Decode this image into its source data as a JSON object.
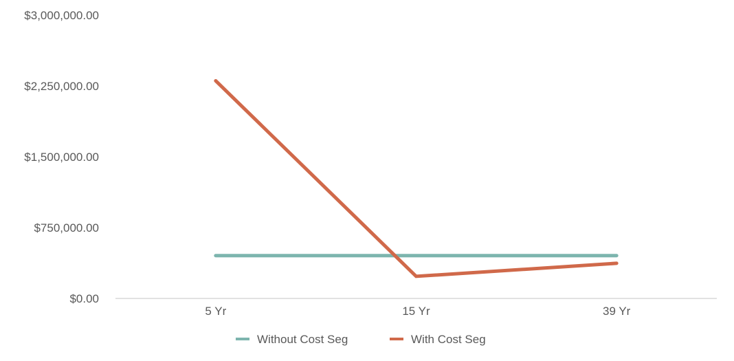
{
  "chart_data": {
    "type": "line",
    "categories": [
      "5 Yr",
      "15 Yr",
      "39 Yr"
    ],
    "series": [
      {
        "name": "Without Cost Seg",
        "color": "#7db5ae",
        "values": [
          453000,
          453000,
          453000
        ]
      },
      {
        "name": "With Cost Seg",
        "color": "#d0694a",
        "values": [
          2305000,
          234000,
          372000
        ]
      }
    ],
    "ylim": [
      0,
      3000000
    ],
    "yticks": [
      0,
      750000,
      1500000,
      2250000,
      3000000
    ],
    "ytick_labels": [
      "$0.00",
      "$750,000.00",
      "$1,500,000.00",
      "$2,250,000.00",
      "$3,000,000.00"
    ],
    "grid": false,
    "legend_position": "bottom",
    "title": "",
    "xlabel": "",
    "ylabel": ""
  }
}
